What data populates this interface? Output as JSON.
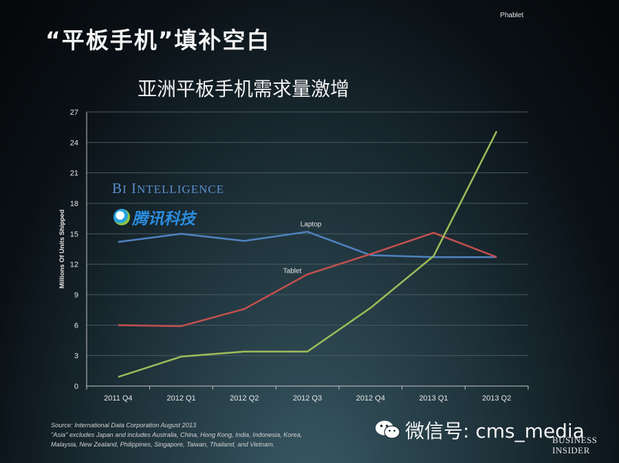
{
  "page_title": "“平板手机”填补空白",
  "watermarks": {
    "bi_intelligence": "BI Intelligence",
    "tencent_tech": "腾讯科技",
    "wechat_label": "微信号: cms_media",
    "business_insider": "BUSINESS INSIDER"
  },
  "source_note": {
    "line1": "Source: International Data Corporation August 2013",
    "line2": "\"Asia\" excludes Japan and includes Australia, China, Hong Kong, India, Indonesia, Korea,",
    "line3": "Malaysia, New Zealand, Philippines, Singapore, Taiwan, Thailand, and Vietnam."
  },
  "colors": {
    "laptop": "#4f81bd",
    "tablet": "#c0504d",
    "phablet": "#9bbb59",
    "grid": "#4a5a62",
    "axis_text": "#e8e8e8"
  },
  "chart_data": {
    "type": "line",
    "title": "亚洲平板手机需求量激增",
    "ylabel": "Millions Of Units Shipped",
    "xlabel": "",
    "categories": [
      "2011 Q4",
      "2012 Q1",
      "2012 Q2",
      "2012 Q3",
      "2012 Q4",
      "2013 Q1",
      "2013 Q2"
    ],
    "ylim": [
      0,
      27
    ],
    "yticks": [
      0,
      3,
      6,
      9,
      12,
      15,
      18,
      21,
      24,
      27
    ],
    "grid": true,
    "series": [
      {
        "name": "Laptop",
        "values": [
          14.2,
          15.0,
          14.3,
          15.2,
          12.9,
          12.7,
          12.7
        ]
      },
      {
        "name": "Tablet",
        "values": [
          6.0,
          5.9,
          7.6,
          11.0,
          13.0,
          15.1,
          12.7
        ]
      },
      {
        "name": "Phablet",
        "values": [
          0.9,
          2.9,
          3.4,
          3.4,
          7.7,
          12.8,
          25.1
        ]
      }
    ]
  }
}
